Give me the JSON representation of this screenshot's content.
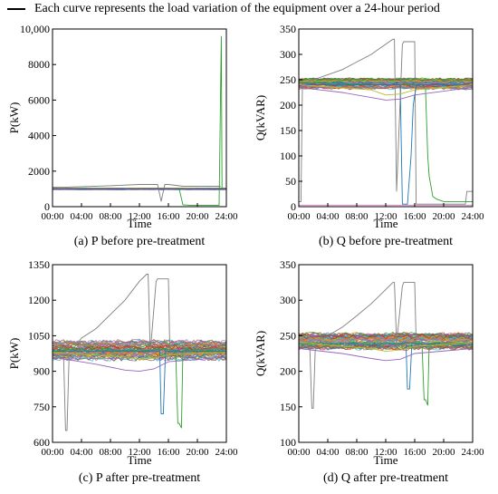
{
  "legend": {
    "label": "Each curve represents the load variation of the equipment over a 24-hour period",
    "color": "#000000"
  },
  "series_palette": [
    "#1f77b4",
    "#ff7f0e",
    "#2ca02c",
    "#d62728",
    "#9467bd",
    "#8c564b",
    "#e377c2",
    "#7f7f7f",
    "#bcbd22",
    "#17becf"
  ],
  "chart_data": [
    {
      "id": "a",
      "type": "line",
      "caption": "(a) P before pre-treatment",
      "xlabel": "Time",
      "ylabel": "P(kW)",
      "x_ticks": [
        "00:00",
        "04:00",
        "08:00",
        "12:00",
        "16:00",
        "20:00",
        "24:00"
      ],
      "xlim": [
        0,
        24
      ],
      "ylim": [
        0,
        10000
      ],
      "y_ticks": [
        0,
        2000,
        4000,
        6000,
        8000,
        10000
      ],
      "y_tick_labels": [
        "0",
        "2000",
        "4000",
        "6000",
        "8000",
        "10,000"
      ],
      "band": {
        "center": 1000,
        "spread": 40,
        "count": 40
      },
      "special_series": [
        {
          "color": "#7f7f7f",
          "x": [
            0,
            2,
            4,
            8,
            12,
            14.5,
            15,
            15.5,
            16,
            18,
            20,
            22,
            23.2
          ],
          "y": [
            1100,
            1100,
            1120,
            1180,
            1250,
            1250,
            300,
            1250,
            1250,
            1150,
            1150,
            1150,
            1150
          ]
        },
        {
          "color": "#2ca02c",
          "x": [
            0,
            16,
            17.5,
            18,
            19,
            20,
            22,
            23,
            23.3,
            23.4,
            23.6,
            24
          ],
          "y": [
            1000,
            1000,
            980,
            100,
            80,
            80,
            80,
            80,
            9600,
            1000,
            1000,
            1000
          ]
        },
        {
          "color": "#d62728",
          "x": [
            0,
            24
          ],
          "y": [
            1000,
            1000
          ]
        },
        {
          "color": "#1f77b4",
          "x": [
            0,
            24
          ],
          "y": [
            980,
            980
          ]
        }
      ]
    },
    {
      "id": "b",
      "type": "line",
      "caption": "(b) Q before pre-treatment",
      "xlabel": "Time",
      "ylabel": "Q(kVAR)",
      "x_ticks": [
        "00:00",
        "04:00",
        "08:00",
        "12:00",
        "16:00",
        "20:00",
        "24:00"
      ],
      "xlim": [
        0,
        24
      ],
      "ylim": [
        0,
        350
      ],
      "y_ticks": [
        0,
        50,
        100,
        150,
        200,
        250,
        300,
        350
      ],
      "y_tick_labels": [
        "0",
        "50",
        "100",
        "150",
        "200",
        "250",
        "300",
        "350"
      ],
      "band": {
        "center": 242,
        "spread": 9,
        "count": 55
      },
      "special_series": [
        {
          "color": "#7f7f7f",
          "x": [
            0,
            0.3,
            0.5,
            1,
            2,
            4,
            6,
            8,
            10,
            12,
            13,
            13.2,
            13.5,
            14.3,
            14.5,
            15,
            16,
            16.2,
            16.5,
            17,
            18,
            20,
            22,
            23,
            23.2,
            24
          ],
          "y": [
            10,
            10,
            240,
            245,
            250,
            260,
            270,
            285,
            300,
            320,
            330,
            330,
            30,
            320,
            325,
            325,
            325,
            5,
            5,
            5,
            5,
            5,
            5,
            5,
            30,
            30
          ]
        },
        {
          "color": "#2ca02c",
          "x": [
            0,
            12,
            17,
            17.5,
            17.8,
            18,
            18.5,
            19,
            20,
            24
          ],
          "y": [
            245,
            240,
            240,
            230,
            100,
            60,
            20,
            15,
            10,
            10
          ]
        },
        {
          "color": "#1f77b4",
          "x": [
            0,
            14,
            14.3,
            15,
            15.5,
            15.8,
            16,
            16.3,
            17,
            24
          ],
          "y": [
            240,
            240,
            5,
            5,
            100,
            200,
            220,
            240,
            240,
            240
          ]
        },
        {
          "color": "#9467bd",
          "x": [
            0,
            6,
            10,
            12,
            14,
            16,
            24
          ],
          "y": [
            235,
            225,
            215,
            210,
            212,
            220,
            235
          ]
        },
        {
          "color": "#e377c2",
          "x": [
            0,
            24
          ],
          "y": [
            3,
            3
          ]
        },
        {
          "color": "#bcbd22",
          "x": [
            0,
            10,
            12,
            14,
            16,
            24
          ],
          "y": [
            240,
            230,
            220,
            222,
            230,
            240
          ]
        }
      ]
    },
    {
      "id": "c",
      "type": "line",
      "caption": "(c) P after pre-treatment",
      "xlabel": "Time",
      "ylabel": "P(kW)",
      "x_ticks": [
        "00:00",
        "04:00",
        "08:00",
        "12:00",
        "16:00",
        "20:00",
        "24:00"
      ],
      "xlim": [
        0,
        24
      ],
      "ylim": [
        600,
        1350
      ],
      "y_ticks": [
        600,
        750,
        900,
        1050,
        1200,
        1350
      ],
      "y_tick_labels": [
        "600",
        "750",
        "900",
        "1050",
        "1200",
        "1350"
      ],
      "band": {
        "center": 990,
        "spread": 35,
        "count": 55
      },
      "special_series": [
        {
          "color": "#7f7f7f",
          "x": [
            0,
            1.5,
            1.8,
            2,
            2.3,
            3,
            4,
            6,
            8,
            10,
            12,
            13,
            13.2,
            13.5,
            14.3,
            14.5,
            15,
            16,
            16.2,
            24
          ],
          "y": [
            1000,
            1000,
            650,
            650,
            980,
            1000,
            1040,
            1080,
            1140,
            1200,
            1280,
            1310,
            1310,
            980,
            1280,
            1290,
            1290,
            1290,
            980,
            1000
          ]
        },
        {
          "color": "#2ca02c",
          "x": [
            0,
            17,
            17.3,
            17.5,
            17.8,
            18,
            24
          ],
          "y": [
            990,
            990,
            680,
            680,
            660,
            990,
            990
          ]
        },
        {
          "color": "#1f77b4",
          "x": [
            0,
            14.8,
            15,
            15.3,
            15.6,
            24
          ],
          "y": [
            985,
            985,
            720,
            720,
            985,
            985
          ]
        },
        {
          "color": "#9467bd",
          "x": [
            0,
            6,
            10,
            12,
            14,
            16,
            24
          ],
          "y": [
            960,
            930,
            905,
            900,
            910,
            940,
            960
          ]
        },
        {
          "color": "#bcbd22",
          "x": [
            0,
            10,
            12,
            14,
            16,
            24
          ],
          "y": [
            980,
            960,
            950,
            955,
            970,
            980
          ]
        }
      ]
    },
    {
      "id": "d",
      "type": "line",
      "caption": "(d) Q after pre-treatment",
      "xlabel": "Time",
      "ylabel": "Q(kVAR)",
      "x_ticks": [
        "00:00",
        "04:00",
        "08:00",
        "12:00",
        "16:00",
        "20:00",
        "24:00"
      ],
      "xlim": [
        0,
        24
      ],
      "ylim": [
        100,
        350
      ],
      "y_ticks": [
        100,
        150,
        200,
        250,
        300,
        350
      ],
      "y_tick_labels": [
        "100",
        "150",
        "200",
        "250",
        "300",
        "350"
      ],
      "band": {
        "center": 242,
        "spread": 10,
        "count": 55
      },
      "special_series": [
        {
          "color": "#7f7f7f",
          "x": [
            0,
            1.5,
            1.8,
            2,
            2.3,
            3,
            4,
            6,
            8,
            10,
            12,
            13,
            13.2,
            13.5,
            14.3,
            14.5,
            15,
            16,
            16.2,
            24
          ],
          "y": [
            240,
            240,
            148,
            148,
            240,
            245,
            250,
            262,
            278,
            295,
            315,
            325,
            325,
            240,
            320,
            325,
            325,
            325,
            240,
            240
          ]
        },
        {
          "color": "#2ca02c",
          "x": [
            0,
            17,
            17.3,
            17.5,
            17.8,
            18,
            24
          ],
          "y": [
            240,
            240,
            160,
            160,
            152,
            240,
            240
          ]
        },
        {
          "color": "#1f77b4",
          "x": [
            0,
            14.8,
            15,
            15.3,
            15.6,
            24
          ],
          "y": [
            238,
            238,
            175,
            175,
            238,
            238
          ]
        },
        {
          "color": "#9467bd",
          "x": [
            0,
            6,
            10,
            12,
            14,
            16,
            24
          ],
          "y": [
            232,
            225,
            218,
            215,
            217,
            225,
            232
          ]
        },
        {
          "color": "#bcbd22",
          "x": [
            0,
            10,
            12,
            14,
            16,
            24
          ],
          "y": [
            240,
            232,
            228,
            230,
            235,
            240
          ]
        }
      ]
    }
  ]
}
